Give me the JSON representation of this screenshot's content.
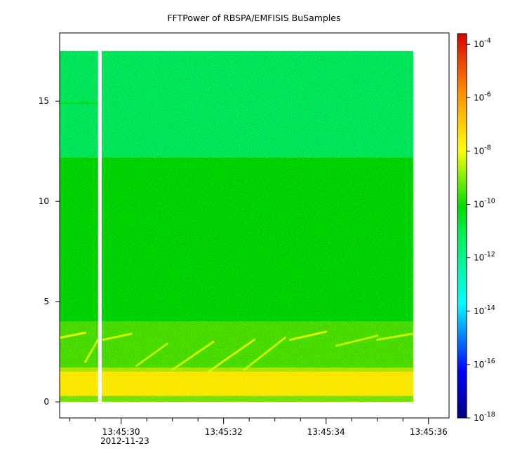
{
  "chart_data": {
    "type": "heatmap",
    "title": "FFTPower of RBSPA/EMFISIS  BuSamples",
    "xlabel": "",
    "ylabel": "",
    "x_date_label": "2012-11-23",
    "x_ticks": [
      {
        "value": 30,
        "label": "13:45:30"
      },
      {
        "value": 32,
        "label": "13:45:32"
      },
      {
        "value": 34,
        "label": "13:45:34"
      },
      {
        "value": 36,
        "label": "13:45:36"
      }
    ],
    "x_minor_ticks": [
      29,
      29.5,
      30.5,
      31,
      31.5,
      32.5,
      33,
      33.5,
      34.5,
      35,
      35.5
    ],
    "xlim": [
      28.8,
      36.4
    ],
    "x_data_range": [
      28.8,
      35.7
    ],
    "data_gap": [
      29.55,
      29.62
    ],
    "y_ticks": [
      0,
      5,
      10,
      15
    ],
    "ylim": [
      -0.8,
      18.4
    ],
    "y_data_range": [
      0,
      17.5
    ],
    "colorbar": {
      "scale": "log",
      "range_exp": [
        -18,
        -3.6
      ],
      "ticks": [
        {
          "exp": -4,
          "label": "10",
          "sup": "-4"
        },
        {
          "exp": -6,
          "label": "10",
          "sup": "-6"
        },
        {
          "exp": -8,
          "label": "10",
          "sup": "-8"
        },
        {
          "exp": -10,
          "label": "10",
          "sup": "-10"
        },
        {
          "exp": -12,
          "label": "10",
          "sup": "-12"
        },
        {
          "exp": -14,
          "label": "10",
          "sup": "-14"
        },
        {
          "exp": -16,
          "label": "10",
          "sup": "-16"
        },
        {
          "exp": -18,
          "label": "10",
          "sup": "-18"
        }
      ],
      "colormap": "rainbow"
    },
    "spectral_bands": [
      {
        "y_range": [
          12.2,
          17.5
        ],
        "log_power": -11.3
      },
      {
        "y_range": [
          4.0,
          12.2
        ],
        "log_power": -10.2
      },
      {
        "y_range": [
          1.5,
          4.0
        ],
        "log_power": -9.4
      },
      {
        "y_range": [
          0.3,
          1.5
        ],
        "log_power": -7.6
      },
      {
        "y_range": [
          0,
          0.3
        ],
        "log_power": -9.0
      }
    ],
    "features": [
      {
        "kind": "line",
        "x": [
          28.8,
          29.55
        ],
        "y": [
          14.9,
          14.9
        ],
        "log_power": -10.0
      },
      {
        "kind": "streak",
        "x": [
          28.8,
          29.3
        ],
        "y": [
          3.2,
          3.45
        ],
        "log_power": -8.0
      },
      {
        "kind": "streak",
        "x": [
          29.3,
          29.55
        ],
        "y": [
          2.0,
          3.1
        ],
        "log_power": -8.3
      },
      {
        "kind": "streak",
        "x": [
          29.65,
          30.2
        ],
        "y": [
          3.1,
          3.4
        ],
        "log_power": -8.2
      },
      {
        "kind": "streak",
        "x": [
          30.3,
          30.9
        ],
        "y": [
          1.8,
          2.9
        ],
        "log_power": -8.4
      },
      {
        "kind": "streak",
        "x": [
          31.0,
          31.8
        ],
        "y": [
          1.6,
          3.0
        ],
        "log_power": -8.3
      },
      {
        "kind": "streak",
        "x": [
          31.7,
          32.6
        ],
        "y": [
          1.5,
          3.1
        ],
        "log_power": -8.2
      },
      {
        "kind": "streak",
        "x": [
          32.4,
          33.2
        ],
        "y": [
          1.6,
          3.2
        ],
        "log_power": -8.3
      },
      {
        "kind": "streak",
        "x": [
          33.3,
          34.0
        ],
        "y": [
          3.1,
          3.5
        ],
        "log_power": -8.1
      },
      {
        "kind": "streak",
        "x": [
          34.2,
          35.0
        ],
        "y": [
          2.8,
          3.3
        ],
        "log_power": -8.4
      },
      {
        "kind": "streak",
        "x": [
          35.0,
          35.7
        ],
        "y": [
          3.1,
          3.4
        ],
        "log_power": -8.3
      }
    ]
  }
}
